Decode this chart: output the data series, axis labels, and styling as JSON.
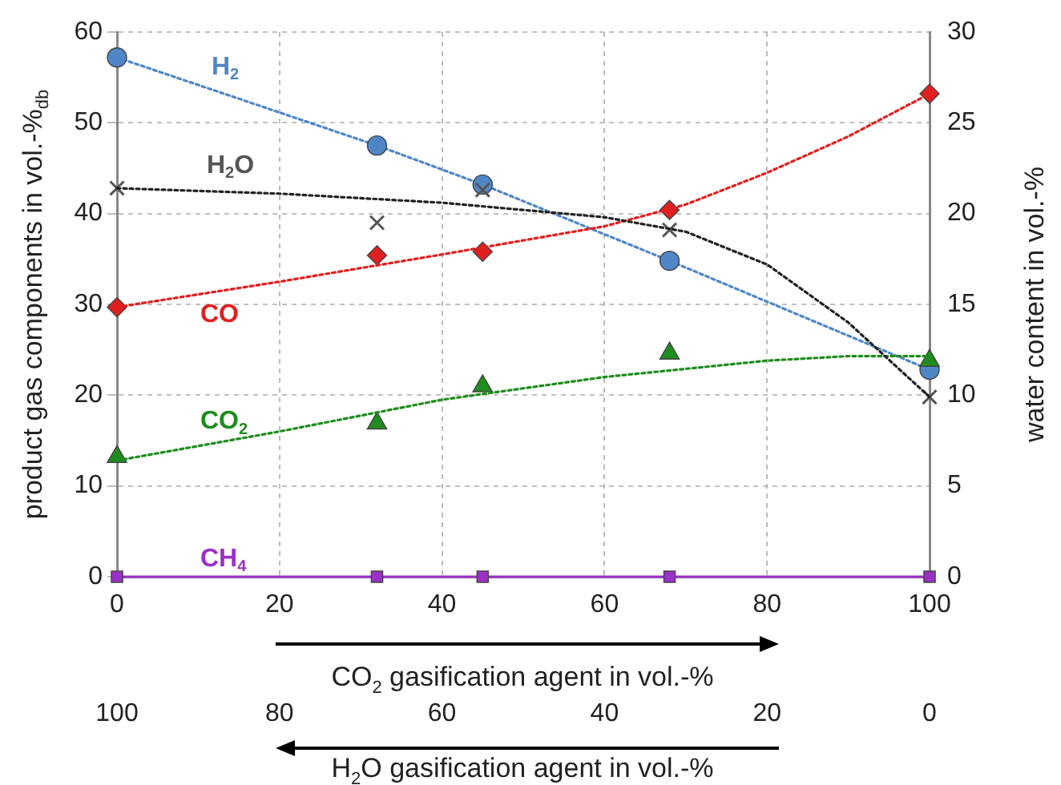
{
  "chart_data": {
    "type": "line",
    "xlabel": "CO$_{2}$ gasification agent in vol.-%",
    "x2label": "H$_{2}$O gasification agent in vol.-%",
    "ylabel": "product gas components in vol.-%$_{db}$",
    "y2label": "water content in vol.-%",
    "x": [
      0,
      32,
      45,
      68,
      100
    ],
    "xlim": [
      0,
      100
    ],
    "xticks": [
      0,
      20,
      40,
      60,
      80,
      100
    ],
    "x2lim": [
      100,
      0
    ],
    "x2ticks": [
      100,
      80,
      60,
      40,
      20,
      0
    ],
    "ylim": [
      0,
      60
    ],
    "yticks": [
      0,
      10,
      20,
      30,
      40,
      50,
      60
    ],
    "y2lim": [
      0,
      30
    ],
    "y2ticks": [
      0,
      5,
      10,
      15,
      20,
      25,
      30
    ],
    "grid": true,
    "legend": false,
    "series": [
      {
        "name": "H$_{2}$",
        "type": "line",
        "color": "#4f86c6",
        "marker": "circle",
        "line_style": "dotted",
        "values": [
          57.2,
          47.5,
          43.2,
          34.8,
          22.8
        ]
      },
      {
        "name": "CO",
        "type": "scatter",
        "color": "#e02020",
        "marker": "diamond",
        "values": [
          29.7,
          35.4,
          35.8,
          40.4,
          53.2
        ]
      },
      {
        "type": "line",
        "color": "#e02020",
        "marker": "none",
        "line_style": "dotted",
        "x": [
          0,
          20,
          40,
          60,
          70,
          80,
          90,
          100
        ],
        "values": [
          29.7,
          32.5,
          35.5,
          38.6,
          41,
          44.5,
          48.5,
          53.2
        ]
      },
      {
        "name": "CO$_{2}$",
        "type": "scatter",
        "color": "#1e8c1e",
        "marker": "triangle",
        "values": [
          13.2,
          16.9,
          21.0,
          24.6,
          23.8
        ]
      },
      {
        "type": "line",
        "color": "#1e8c1e",
        "marker": "none",
        "line_style": "dotted",
        "x": [
          0,
          20,
          40,
          60,
          80,
          90,
          100
        ],
        "values": [
          12.8,
          16,
          19.5,
          22,
          23.8,
          24.3,
          24.3
        ]
      },
      {
        "name": "CH$_{4}$",
        "type": "line",
        "color": "#9b30c8",
        "marker": "square",
        "line_style": "solid",
        "values": [
          0,
          0,
          0,
          0,
          0
        ]
      },
      {
        "name": "H$_{2}$O",
        "type": "scatter",
        "axis": "y2",
        "color": "#555555",
        "marker": "cross",
        "values": [
          21.4,
          19.5,
          21.3,
          19.1,
          9.9
        ]
      },
      {
        "type": "line",
        "axis": "y2",
        "color": "#222222",
        "marker": "none",
        "line_style": "dotted",
        "x": [
          0,
          20,
          40,
          60,
          70,
          80,
          90,
          100
        ],
        "values": [
          21.4,
          21.1,
          20.6,
          19.8,
          19,
          17.2,
          14,
          9.9
        ]
      }
    ]
  }
}
